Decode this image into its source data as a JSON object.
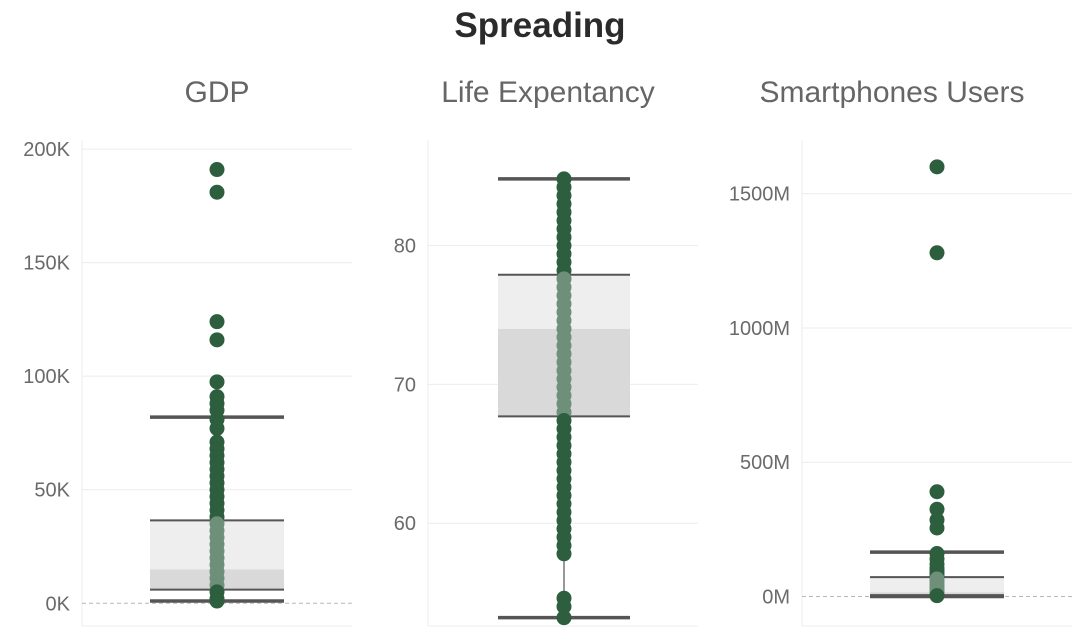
{
  "title": "Spreading",
  "chart_data": [
    {
      "type": "box",
      "title": "GDP",
      "xlabel": "",
      "ylabel": "",
      "ylim": [
        -10000,
        204000
      ],
      "ticks": [
        {
          "value": 0,
          "label": "0K"
        },
        {
          "value": 50000,
          "label": "50K"
        },
        {
          "value": 100000,
          "label": "100K"
        },
        {
          "value": 150000,
          "label": "150K"
        },
        {
          "value": 200000,
          "label": "200K"
        }
      ],
      "zero_line": true,
      "box": {
        "whisker_low": 1000,
        "q1": 6000,
        "median": 15000,
        "q3": 36500,
        "whisker_high": 82000
      },
      "points": [
        191000,
        181000,
        124000,
        116000,
        97500,
        91000,
        88000,
        85000,
        81000,
        77000,
        71000,
        68000,
        65000,
        62000,
        59000,
        56000,
        53000,
        50000,
        47000,
        44000,
        41000,
        38000,
        35000,
        32000,
        29000,
        26000,
        23000,
        20000,
        17000,
        14000,
        11000,
        8000,
        5000,
        2000,
        1000
      ]
    },
    {
      "type": "box",
      "title": "Life Expentancy",
      "xlabel": "",
      "ylabel": "",
      "ylim": [
        52.6,
        87.6
      ],
      "ticks": [
        {
          "value": 60,
          "label": "60"
        },
        {
          "value": 70,
          "label": "70"
        },
        {
          "value": 80,
          "label": "80"
        }
      ],
      "zero_line": false,
      "box": {
        "whisker_low": 53.2,
        "q1": 67.7,
        "median": 74.0,
        "q3": 77.9,
        "whisker_high": 84.8
      },
      "points": [
        84.8,
        84.2,
        83.6,
        83.0,
        82.4,
        81.8,
        81.2,
        80.6,
        80.0,
        79.4,
        78.8,
        78.2,
        77.6,
        77.0,
        76.4,
        75.8,
        75.2,
        74.6,
        74.0,
        73.4,
        72.8,
        72.2,
        71.6,
        71.0,
        70.4,
        69.8,
        69.2,
        68.6,
        68.0,
        67.4,
        66.8,
        66.2,
        65.6,
        65.0,
        64.4,
        63.8,
        63.2,
        62.6,
        62.0,
        61.4,
        60.8,
        60.2,
        59.6,
        59.0,
        58.4,
        57.8,
        54.6,
        54.0,
        53.2
      ]
    },
    {
      "type": "box",
      "title": "Smartphones Users",
      "xlabel": "",
      "ylabel": "",
      "ylim": [
        -110,
        1700
      ],
      "ticks": [
        {
          "value": 0,
          "label": "0M"
        },
        {
          "value": 500,
          "label": "500M"
        },
        {
          "value": 1000,
          "label": "1000M"
        },
        {
          "value": 1500,
          "label": "1500M"
        }
      ],
      "zero_line": true,
      "box": {
        "whisker_low": 0,
        "q1": 5,
        "median": 16,
        "q3": 72,
        "whisker_high": 165
      },
      "points": [
        1600,
        1280,
        390,
        325,
        285,
        255,
        160,
        140,
        120,
        105,
        95,
        85,
        75,
        65,
        55,
        45,
        35,
        25,
        15,
        8,
        3
      ]
    }
  ]
}
